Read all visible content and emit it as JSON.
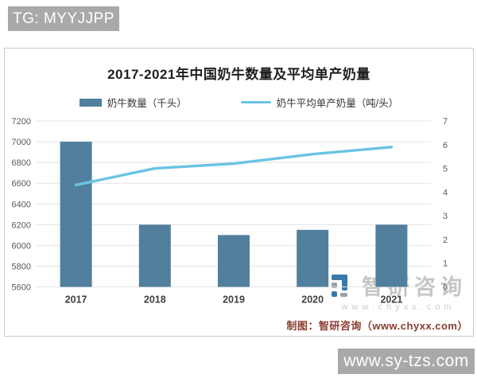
{
  "badges": {
    "tg": "TG: MYYJJPP",
    "site": "www.sy-tzs.com"
  },
  "chart": {
    "title": "2017-2021年中国奶牛数量及平均单产奶量",
    "legend": [
      {
        "label": "奶牛数量（千头）",
        "type": "bar",
        "color": "#517f9d"
      },
      {
        "label": "奶牛平均单产奶量（吨/头）",
        "type": "line",
        "color": "#69c4e2"
      }
    ],
    "watermark": {
      "name": "智研咨询",
      "url": "www.chyxx.com"
    },
    "footer": "制图：智研咨询（www.chyxx.com）"
  },
  "chart_data": {
    "type": "bar",
    "subtype": "dual-axis bar+line",
    "title": "2017-2021年中国奶牛数量及平均单产奶量",
    "categories": [
      "2017",
      "2018",
      "2019",
      "2020",
      "2021"
    ],
    "series": [
      {
        "name": "奶牛数量（千头）",
        "type": "bar",
        "axis": "left",
        "color": "#517f9d",
        "values": [
          7000,
          6200,
          6100,
          6150,
          6200
        ]
      },
      {
        "name": "奶牛平均单产奶量（吨/头）",
        "type": "line",
        "axis": "right",
        "color": "#69c4e2",
        "values": [
          4.3,
          5.0,
          5.2,
          5.6,
          5.9
        ]
      }
    ],
    "left_axis": {
      "min": 5600,
      "max": 7200,
      "step": 200,
      "ticks": [
        5600,
        5800,
        6000,
        6200,
        6400,
        6600,
        6800,
        7000,
        7200
      ]
    },
    "right_axis": {
      "min": 0,
      "max": 7,
      "step": 1,
      "ticks": [
        0,
        1,
        2,
        3,
        4,
        5,
        6,
        7
      ]
    },
    "grid": "horizontal",
    "legend_position": "top"
  }
}
